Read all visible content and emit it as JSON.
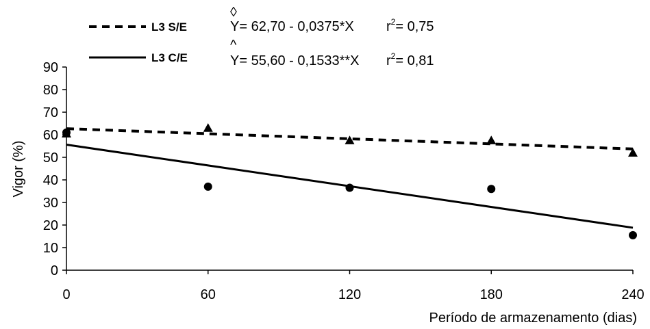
{
  "chart_data": {
    "type": "scatter",
    "xlabel": "Período de armazenamento (dias)",
    "ylabel": "Vigor (%)",
    "xlim": [
      0,
      240
    ],
    "ylim": [
      0,
      90
    ],
    "xticks": [
      "0",
      "60",
      "120",
      "180",
      "240"
    ],
    "yticks": [
      "0",
      "10",
      "20",
      "30",
      "40",
      "50",
      "60",
      "70",
      "80",
      "90"
    ],
    "grid": false,
    "legend_position": "top-left",
    "series": [
      {
        "name": "L3 S/E",
        "marker": "triangle",
        "line_style": "dashed",
        "x": [
          0,
          60,
          120,
          180,
          240
        ],
        "y": [
          60.5,
          63.0,
          57.5,
          57.5,
          52.0
        ],
        "fit": {
          "intercept": 62.7,
          "slope": -0.0375
        },
        "equation": "Y= 62,70 - 0,0375*X",
        "r2_label": "r",
        "r2_sup": "2",
        "r2_value": "= 0,75"
      },
      {
        "name": "L3 C/E",
        "marker": "circle",
        "line_style": "solid",
        "x": [
          0,
          60,
          120,
          180,
          240
        ],
        "y": [
          61.0,
          37.0,
          36.5,
          36.0,
          15.5
        ],
        "fit": {
          "intercept": 55.6,
          "slope": -0.1533
        },
        "equation": "Y= 55,60 - 0,1533**X",
        "r2_label": "r",
        "r2_sup": "2",
        "r2_value": "= 0,81"
      }
    ],
    "colors": {
      "ink": "#000000",
      "background": "#ffffff"
    }
  }
}
